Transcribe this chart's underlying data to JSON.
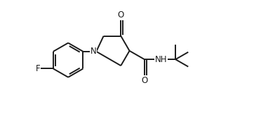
{
  "bg_color": "#ffffff",
  "line_color": "#1a1a1a",
  "line_width": 1.4,
  "font_size": 8.5,
  "figsize": [
    3.72,
    1.62
  ],
  "dpi": 100,
  "xlim": [
    0.0,
    8.5
  ],
  "ylim": [
    -1.5,
    3.2
  ]
}
